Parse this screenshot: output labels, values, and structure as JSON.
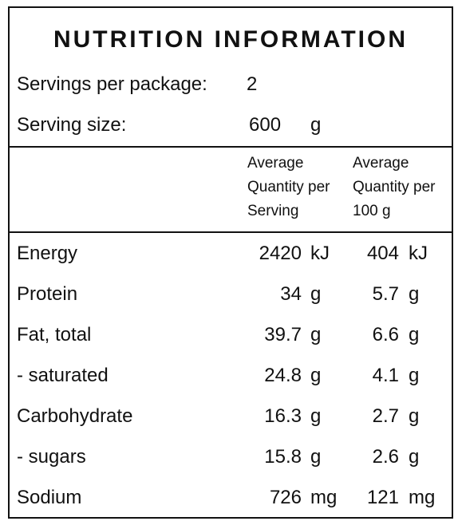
{
  "title": "NUTRITION INFORMATION",
  "servings_label": "Servings per package:",
  "servings_value": "2",
  "serving_size_label": "Serving size:",
  "serving_size_value": "600",
  "serving_size_unit": "g",
  "column_headers": {
    "per_serving": [
      "Average",
      "Quantity per",
      "Serving"
    ],
    "per_100g": [
      "Average",
      "Quantity per",
      "100 g"
    ]
  },
  "rows": [
    {
      "name": "Energy",
      "per_serving": "2420",
      "per_serving_unit": "kJ",
      "per_100g": "404",
      "per_100g_unit": "kJ"
    },
    {
      "name": "Protein",
      "per_serving": "34",
      "per_serving_unit": "g",
      "per_100g": "5.7",
      "per_100g_unit": "g"
    },
    {
      "name": "Fat, total",
      "per_serving": "39.7",
      "per_serving_unit": "g",
      "per_100g": "6.6",
      "per_100g_unit": "g"
    },
    {
      "name": "- saturated",
      "per_serving": "24.8",
      "per_serving_unit": "g",
      "per_100g": "4.1",
      "per_100g_unit": "g"
    },
    {
      "name": "Carbohydrate",
      "per_serving": "16.3",
      "per_serving_unit": "g",
      "per_100g": "2.7",
      "per_100g_unit": "g"
    },
    {
      "name": "- sugars",
      "per_serving": "15.8",
      "per_serving_unit": "g",
      "per_100g": "2.6",
      "per_100g_unit": "g"
    },
    {
      "name": "Sodium",
      "per_serving": "726",
      "per_serving_unit": "mg",
      "per_100g": "121",
      "per_100g_unit": "mg"
    }
  ]
}
